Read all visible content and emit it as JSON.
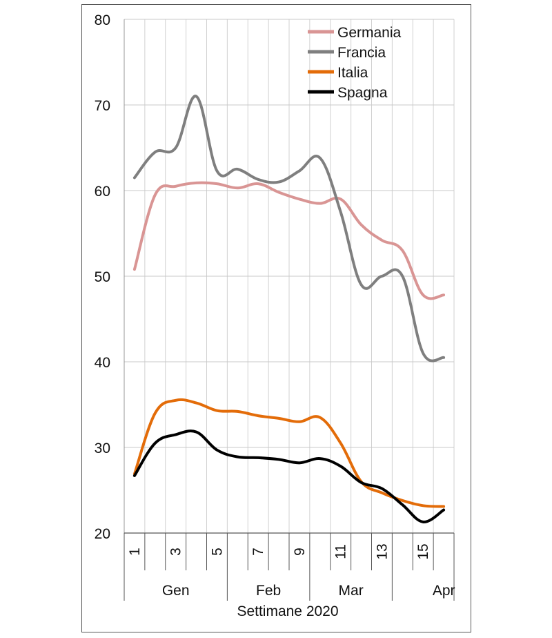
{
  "chart_data": {
    "type": "line",
    "title": "",
    "xlabel": "Settimane 2020",
    "ylabel": "",
    "ylim": [
      20,
      80
    ],
    "yticks": [
      20,
      30,
      40,
      50,
      60,
      70,
      80
    ],
    "x": [
      1,
      2,
      3,
      4,
      5,
      6,
      7,
      8,
      9,
      10,
      11,
      12,
      13,
      14,
      15,
      16
    ],
    "xtick_labels": [
      "1",
      "3",
      "5",
      "7",
      "9",
      "11",
      "13",
      "15"
    ],
    "xtick_values": [
      1,
      3,
      5,
      7,
      9,
      11,
      13,
      15
    ],
    "months": [
      {
        "label": "Gen",
        "start": 0.5,
        "end": 5.5
      },
      {
        "label": "Feb",
        "start": 5.5,
        "end": 9.5
      },
      {
        "label": "Mar",
        "start": 9.5,
        "end": 13.5
      },
      {
        "label": "Apr",
        "start": 13.5,
        "end": 16.5
      }
    ],
    "grid": true,
    "legend_position": "top-right",
    "series": [
      {
        "name": "Germania",
        "color": "#d99594",
        "values": [
          50.8,
          59.5,
          60.5,
          60.9,
          60.8,
          60.3,
          60.8,
          59.8,
          59.0,
          58.5,
          59.0,
          56.0,
          54.2,
          53.0,
          47.8,
          47.8
        ]
      },
      {
        "name": "Francia",
        "color": "#7f7f7f",
        "values": [
          61.5,
          64.5,
          65.0,
          71.0,
          62.3,
          62.5,
          61.3,
          61.0,
          62.3,
          63.8,
          57.5,
          49.0,
          50.0,
          50.0,
          41.0,
          40.5
        ]
      },
      {
        "name": "Italia",
        "color": "#e36c09",
        "values": [
          26.9,
          34.0,
          35.5,
          35.2,
          34.3,
          34.2,
          33.7,
          33.4,
          33.0,
          33.5,
          30.5,
          26.0,
          24.7,
          23.8,
          23.2,
          23.1
        ]
      },
      {
        "name": "Spagna",
        "color": "#000000",
        "values": [
          26.7,
          30.5,
          31.5,
          31.8,
          29.7,
          28.9,
          28.8,
          28.6,
          28.2,
          28.7,
          27.8,
          25.9,
          25.2,
          23.3,
          21.3,
          22.7
        ]
      }
    ]
  }
}
